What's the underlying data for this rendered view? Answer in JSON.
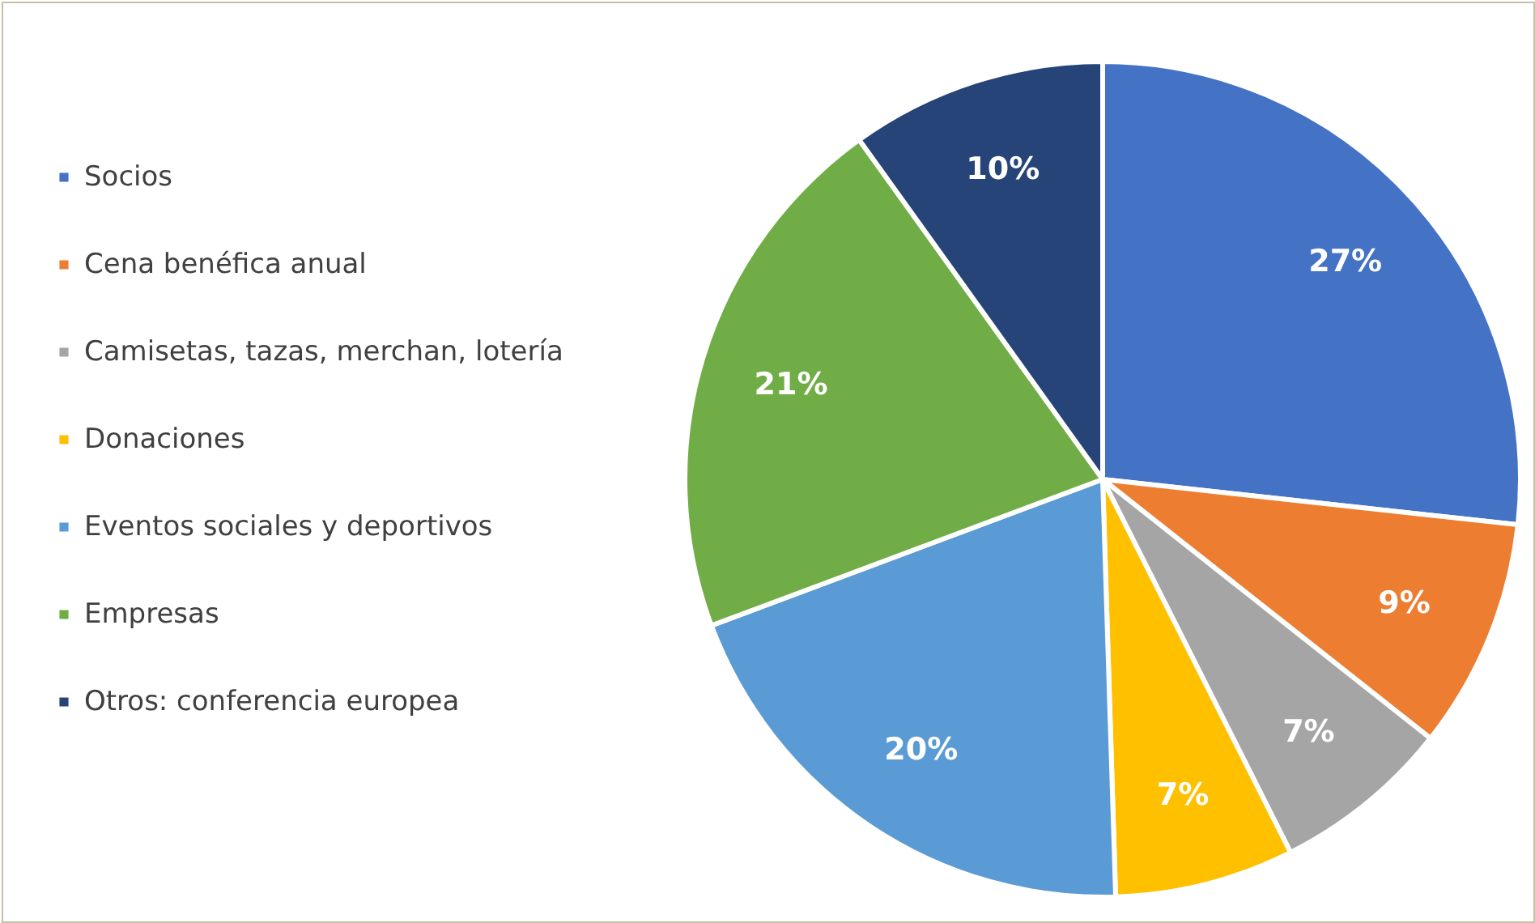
{
  "chart_data": {
    "type": "pie",
    "categories": [
      "Socios",
      "Cena benéfica anual",
      "Camisetas, tazas, merchan, lotería",
      "Donaciones",
      "Eventos sociales y deportivos",
      "Empresas",
      "Otros: conferencia europea"
    ],
    "values": [
      27,
      9,
      7,
      7,
      20,
      21,
      10
    ],
    "colors": [
      "#4472c4",
      "#ed7d31",
      "#a5a5a5",
      "#ffc000",
      "#5b9bd5",
      "#70ad47",
      "#264478"
    ],
    "value_labels": [
      "27%",
      "9%",
      "7%",
      "7%",
      "20%",
      "21%",
      "10%"
    ],
    "legend": "left"
  }
}
